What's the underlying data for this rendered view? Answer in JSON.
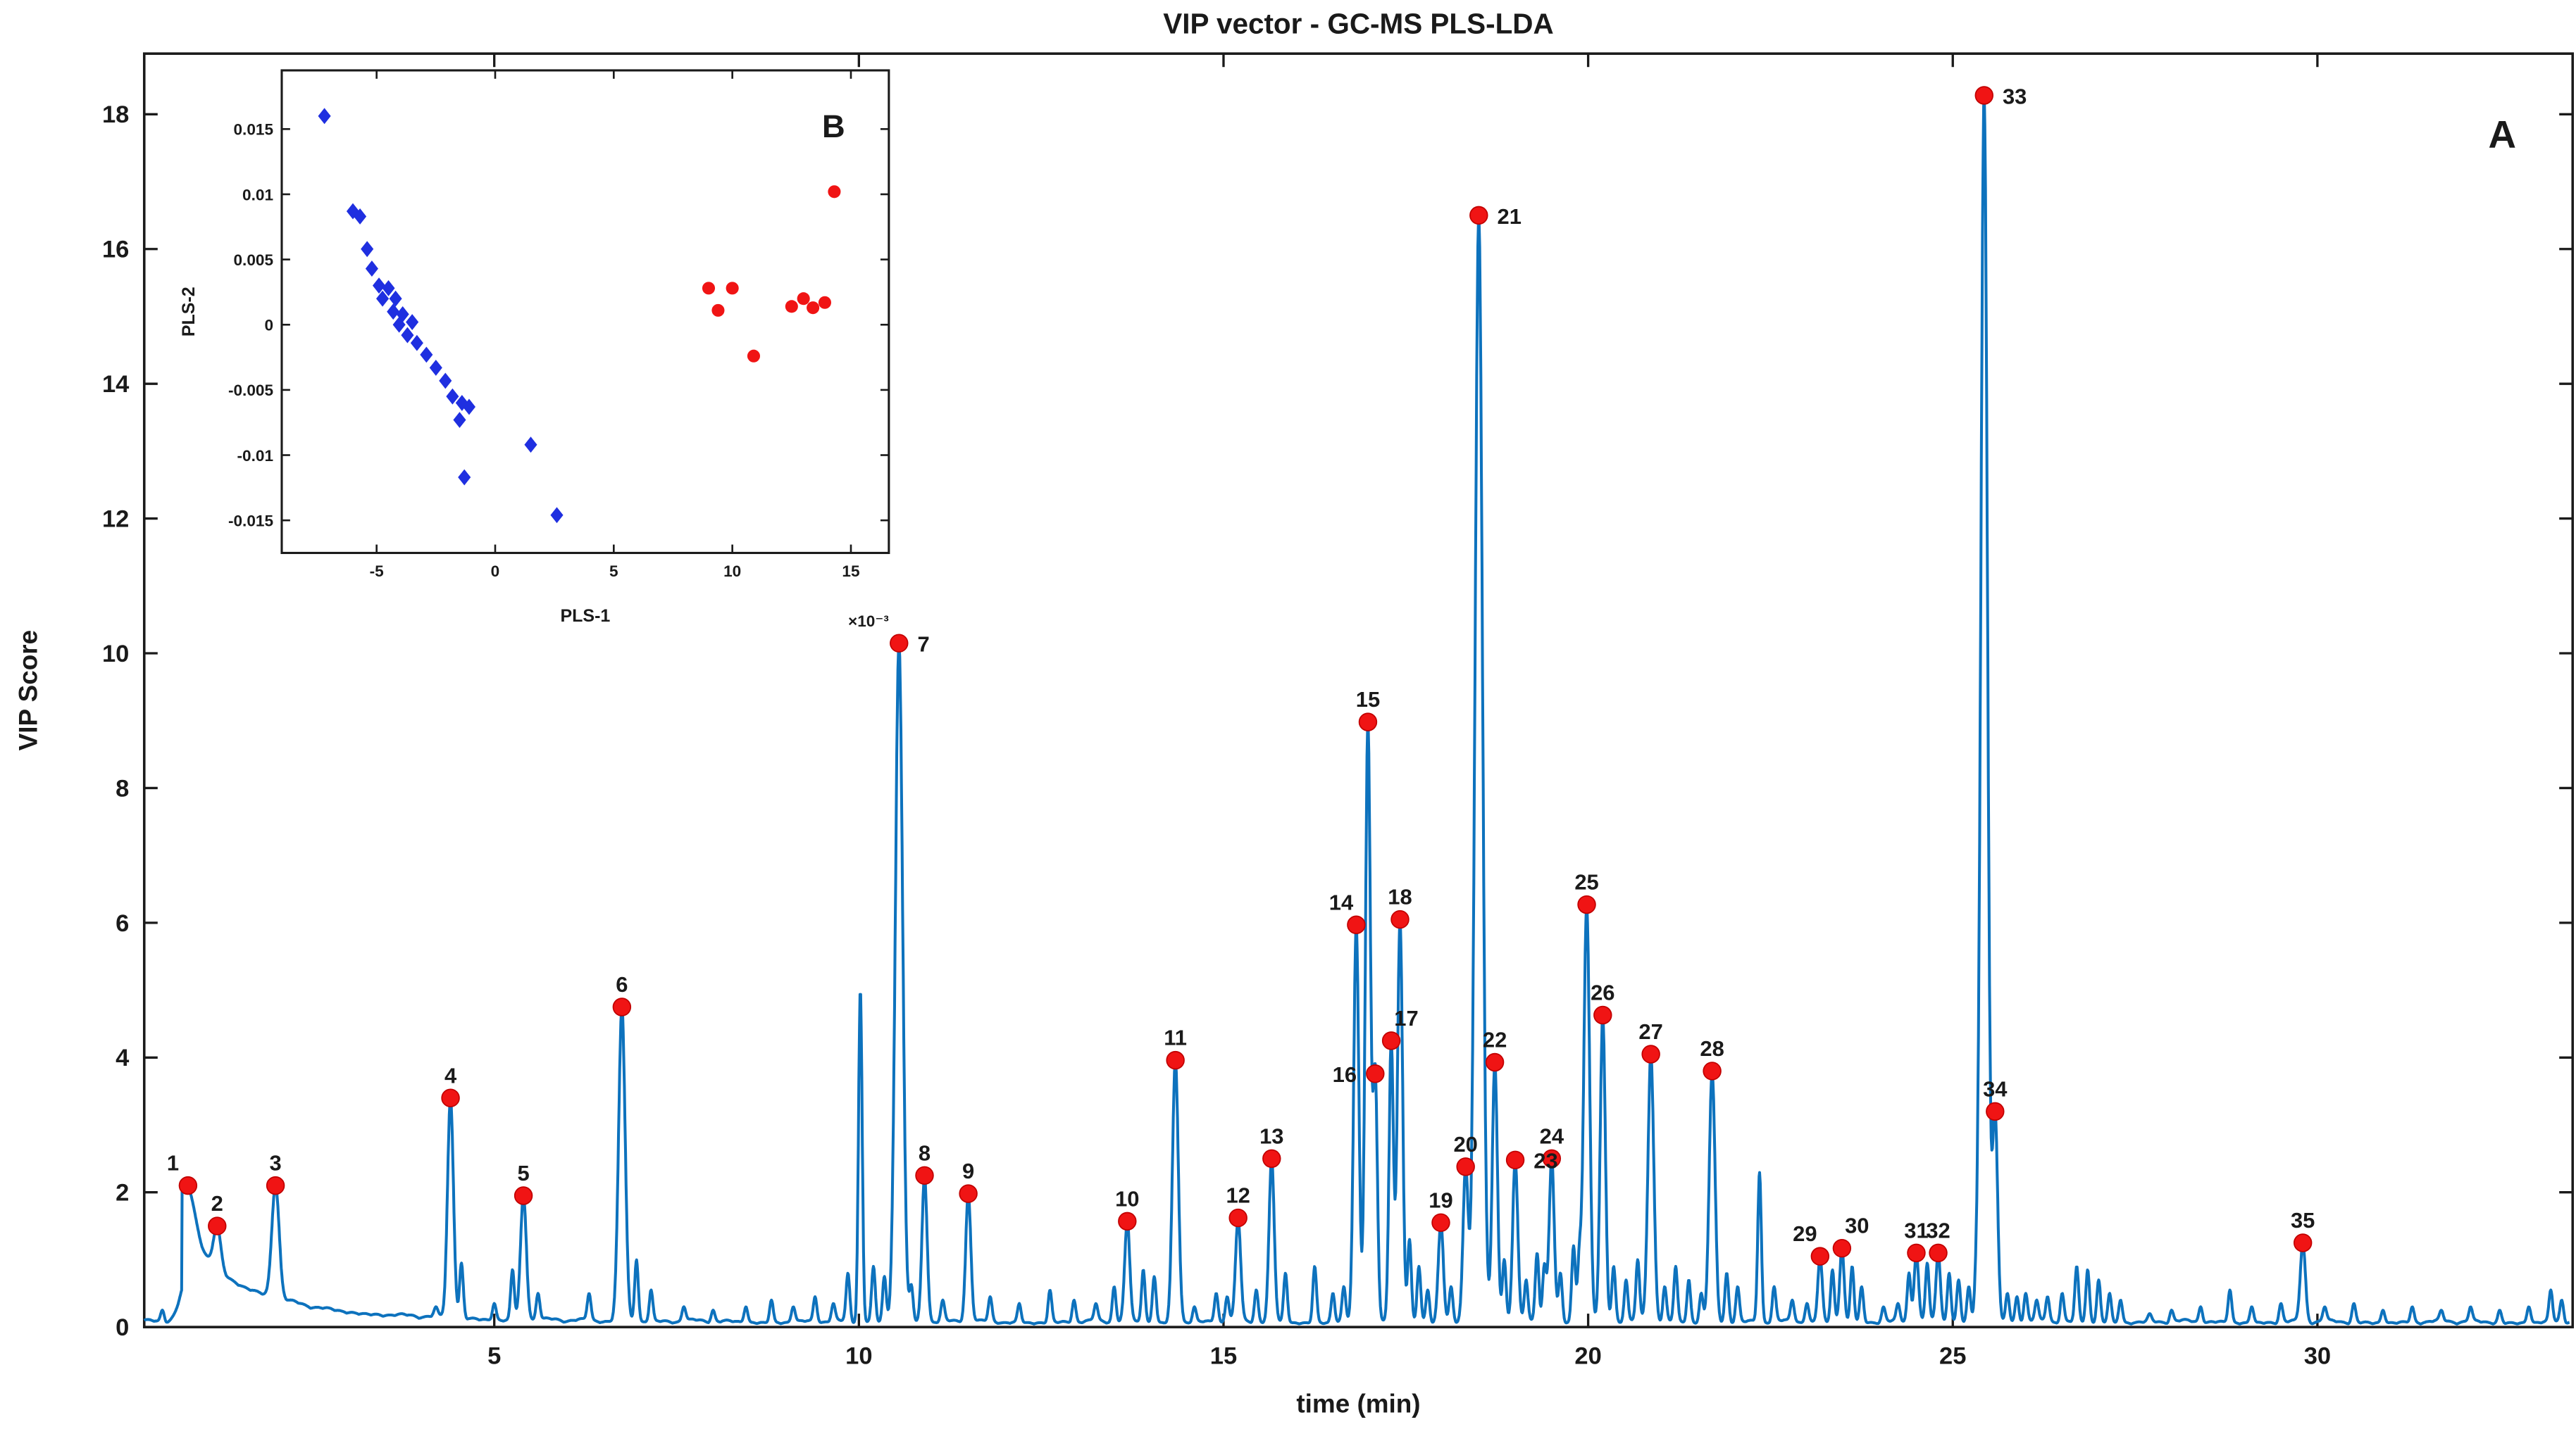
{
  "figure": {
    "panel_label_main": "A",
    "panel_label_inset": "B"
  },
  "chart_data": [
    {
      "id": "main",
      "type": "line",
      "title": "VIP vector - GC-MS PLS-LDA",
      "xlabel": "time (min)",
      "ylabel": "VIP Score",
      "xlim": [
        0.2,
        33.5
      ],
      "ylim": [
        0,
        18.9
      ],
      "xticks": [
        5,
        10,
        15,
        20,
        25,
        30
      ],
      "yticks": [
        0,
        2,
        4,
        6,
        8,
        10,
        12,
        14,
        16,
        18
      ],
      "grid": false,
      "line_color": "#0d72bd",
      "marker_color": "#f01414",
      "marker_edge_color": "#c00000",
      "axis_color": "#1a1a1a",
      "peaks": [
        {
          "n": 1,
          "t": 0.8,
          "v": 2.1,
          "s": 0.1,
          "la": "tl"
        },
        {
          "n": 2,
          "t": 1.2,
          "v": 1.5,
          "s": 0.05,
          "la": "t"
        },
        {
          "n": 3,
          "t": 2.0,
          "v": 2.1,
          "s": 0.05,
          "la": "t"
        },
        {
          "n": 4,
          "t": 4.4,
          "v": 3.4,
          "s": 0.04,
          "la": "t"
        },
        {
          "n": 5,
          "t": 5.4,
          "v": 1.95,
          "s": 0.04,
          "la": "t"
        },
        {
          "n": 6,
          "t": 6.75,
          "v": 4.75,
          "s": 0.045,
          "la": "t"
        },
        {
          "n": 7,
          "t": 10.55,
          "v": 10.15,
          "s": 0.05,
          "la": "r"
        },
        {
          "n": 8,
          "t": 10.9,
          "v": 2.25,
          "s": 0.035,
          "la": "t"
        },
        {
          "n": 9,
          "t": 11.5,
          "v": 1.98,
          "s": 0.035,
          "la": "t"
        },
        {
          "n": 10,
          "t": 13.68,
          "v": 1.57,
          "s": 0.035,
          "la": "t"
        },
        {
          "n": 11,
          "t": 14.34,
          "v": 3.96,
          "s": 0.04,
          "la": "t"
        },
        {
          "n": 12,
          "t": 15.2,
          "v": 1.62,
          "s": 0.035,
          "la": "t"
        },
        {
          "n": 13,
          "t": 15.66,
          "v": 2.5,
          "s": 0.035,
          "la": "t"
        },
        {
          "n": 14,
          "t": 16.82,
          "v": 5.97,
          "s": 0.035,
          "la": "tl"
        },
        {
          "n": 15,
          "t": 16.98,
          "v": 8.98,
          "s": 0.035,
          "la": "t"
        },
        {
          "n": 16,
          "t": 17.08,
          "v": 3.76,
          "s": 0.03,
          "la": "l"
        },
        {
          "n": 17,
          "t": 17.3,
          "v": 4.25,
          "s": 0.03,
          "la": "tr"
        },
        {
          "n": 18,
          "t": 17.42,
          "v": 6.05,
          "s": 0.035,
          "la": "t"
        },
        {
          "n": 19,
          "t": 17.98,
          "v": 1.55,
          "s": 0.035,
          "la": "t"
        },
        {
          "n": 20,
          "t": 18.32,
          "v": 2.38,
          "s": 0.035,
          "la": "t"
        },
        {
          "n": 21,
          "t": 18.5,
          "v": 16.5,
          "s": 0.05,
          "la": "r"
        },
        {
          "n": 22,
          "t": 18.72,
          "v": 3.93,
          "s": 0.035,
          "la": "t"
        },
        {
          "n": 23,
          "t": 19.0,
          "v": 2.48,
          "s": 0.035,
          "la": "r"
        },
        {
          "n": 24,
          "t": 19.5,
          "v": 2.5,
          "s": 0.035,
          "la": "t"
        },
        {
          "n": 25,
          "t": 19.98,
          "v": 6.27,
          "s": 0.04,
          "la": "t"
        },
        {
          "n": 26,
          "t": 20.2,
          "v": 4.63,
          "s": 0.035,
          "la": "t"
        },
        {
          "n": 27,
          "t": 20.86,
          "v": 4.05,
          "s": 0.04,
          "la": "t"
        },
        {
          "n": 28,
          "t": 21.7,
          "v": 3.8,
          "s": 0.04,
          "la": "t"
        },
        {
          "n": 29,
          "t": 23.18,
          "v": 1.05,
          "s": 0.03,
          "la": "tl"
        },
        {
          "n": 30,
          "t": 23.48,
          "v": 1.17,
          "s": 0.03,
          "la": "tr"
        },
        {
          "n": 31,
          "t": 24.5,
          "v": 1.1,
          "s": 0.03,
          "la": "t"
        },
        {
          "n": 32,
          "t": 24.8,
          "v": 1.1,
          "s": 0.03,
          "la": "t"
        },
        {
          "n": 33,
          "t": 25.43,
          "v": 18.28,
          "s": 0.045,
          "la": "r"
        },
        {
          "n": 34,
          "t": 25.58,
          "v": 3.2,
          "s": 0.035,
          "la": "t"
        },
        {
          "n": 35,
          "t": 29.8,
          "v": 1.25,
          "s": 0.035,
          "la": "t"
        }
      ],
      "minor_peaks": [
        [
          0.45,
          0.25
        ],
        [
          4.2,
          0.3
        ],
        [
          4.55,
          0.95
        ],
        [
          5.0,
          0.35
        ],
        [
          5.25,
          0.85
        ],
        [
          5.6,
          0.5
        ],
        [
          6.3,
          0.5
        ],
        [
          6.95,
          1.0
        ],
        [
          7.15,
          0.55
        ],
        [
          7.6,
          0.3
        ],
        [
          8.0,
          0.25
        ],
        [
          8.45,
          0.3
        ],
        [
          8.8,
          0.4
        ],
        [
          9.1,
          0.3
        ],
        [
          9.4,
          0.45
        ],
        [
          9.65,
          0.35
        ],
        [
          9.85,
          0.8
        ],
        [
          10.02,
          5.0
        ],
        [
          10.2,
          0.9
        ],
        [
          10.35,
          0.75
        ],
        [
          10.72,
          0.6
        ],
        [
          11.15,
          0.4
        ],
        [
          11.8,
          0.45
        ],
        [
          12.2,
          0.35
        ],
        [
          12.62,
          0.55
        ],
        [
          12.95,
          0.4
        ],
        [
          13.25,
          0.35
        ],
        [
          13.5,
          0.6
        ],
        [
          13.9,
          0.85
        ],
        [
          14.05,
          0.75
        ],
        [
          14.6,
          0.3
        ],
        [
          14.9,
          0.5
        ],
        [
          15.05,
          0.45
        ],
        [
          15.45,
          0.55
        ],
        [
          15.85,
          0.8
        ],
        [
          16.25,
          0.9
        ],
        [
          16.5,
          0.5
        ],
        [
          16.65,
          0.6
        ],
        [
          17.55,
          1.3
        ],
        [
          17.68,
          0.9
        ],
        [
          17.8,
          0.55
        ],
        [
          18.12,
          0.6
        ],
        [
          18.85,
          1.0
        ],
        [
          19.15,
          0.7
        ],
        [
          19.3,
          1.1
        ],
        [
          19.4,
          0.9
        ],
        [
          19.62,
          0.8
        ],
        [
          19.8,
          1.2
        ],
        [
          19.88,
          1.0
        ],
        [
          20.35,
          0.9
        ],
        [
          20.52,
          0.7
        ],
        [
          20.68,
          1.0
        ],
        [
          21.05,
          0.6
        ],
        [
          21.2,
          0.9
        ],
        [
          21.38,
          0.7
        ],
        [
          21.55,
          0.5
        ],
        [
          21.9,
          0.8
        ],
        [
          22.05,
          0.6
        ],
        [
          22.35,
          2.3
        ],
        [
          22.55,
          0.6
        ],
        [
          22.8,
          0.4
        ],
        [
          23.0,
          0.35
        ],
        [
          23.35,
          0.85
        ],
        [
          23.62,
          0.9
        ],
        [
          23.75,
          0.6
        ],
        [
          24.05,
          0.3
        ],
        [
          24.25,
          0.35
        ],
        [
          24.4,
          0.8
        ],
        [
          24.65,
          0.95
        ],
        [
          24.95,
          0.8
        ],
        [
          25.08,
          0.7
        ],
        [
          25.22,
          0.6
        ],
        [
          25.32,
          0.5
        ],
        [
          25.75,
          0.5
        ],
        [
          25.88,
          0.45
        ],
        [
          26.0,
          0.5
        ],
        [
          26.15,
          0.4
        ],
        [
          26.3,
          0.45
        ],
        [
          26.5,
          0.5
        ],
        [
          26.7,
          0.9
        ],
        [
          26.85,
          0.85
        ],
        [
          27.0,
          0.7
        ],
        [
          27.15,
          0.5
        ],
        [
          27.3,
          0.4
        ],
        [
          27.7,
          0.2
        ],
        [
          28.0,
          0.25
        ],
        [
          28.4,
          0.3
        ],
        [
          28.8,
          0.55
        ],
        [
          29.1,
          0.3
        ],
        [
          29.5,
          0.35
        ],
        [
          30.1,
          0.3
        ],
        [
          30.5,
          0.35
        ],
        [
          30.9,
          0.25
        ],
        [
          31.3,
          0.3
        ],
        [
          31.7,
          0.25
        ],
        [
          32.1,
          0.3
        ],
        [
          32.5,
          0.25
        ],
        [
          32.9,
          0.3
        ],
        [
          33.2,
          0.55
        ],
        [
          33.35,
          0.4
        ]
      ],
      "baseline_hump": {
        "t0": 0.72,
        "a1": 0.9,
        "tau1": 0.5,
        "a2": 0.62,
        "tau2": 1.6
      }
    },
    {
      "id": "inset",
      "type": "scatter",
      "xlabel": "PLS-1",
      "ylabel": "PLS-2",
      "x_multiplier": "×10⁻³",
      "xlim": [
        -9,
        16.6
      ],
      "ylim": [
        -0.0175,
        0.0195
      ],
      "xticks": [
        -5,
        0,
        5,
        10,
        15
      ],
      "yticks": [
        -0.015,
        -0.01,
        -0.005,
        0,
        0.005,
        0.01,
        0.015
      ],
      "grid": false,
      "series": [
        {
          "name": "class-blue",
          "marker": "diamond",
          "color": "#1f2fe0",
          "points": [
            [
              -7.2,
              0.016
            ],
            [
              -6.0,
              0.0087
            ],
            [
              -5.7,
              0.0083
            ],
            [
              -5.4,
              0.0058
            ],
            [
              -5.2,
              0.0043
            ],
            [
              -4.9,
              0.003
            ],
            [
              -4.75,
              0.002
            ],
            [
              -4.5,
              0.0028
            ],
            [
              -4.3,
              0.001
            ],
            [
              -4.2,
              0.002
            ],
            [
              -4.05,
              0.0
            ],
            [
              -3.9,
              0.0008
            ],
            [
              -3.7,
              -0.0008
            ],
            [
              -3.5,
              0.0002
            ],
            [
              -3.3,
              -0.0014
            ],
            [
              -2.9,
              -0.0023
            ],
            [
              -2.5,
              -0.0033
            ],
            [
              -2.1,
              -0.0043
            ],
            [
              -1.8,
              -0.0055
            ],
            [
              -1.5,
              -0.0073
            ],
            [
              -1.4,
              -0.006
            ],
            [
              -1.1,
              -0.0063
            ],
            [
              -1.3,
              -0.0117
            ],
            [
              1.5,
              -0.0092
            ],
            [
              2.6,
              -0.0146
            ]
          ]
        },
        {
          "name": "class-red",
          "marker": "circle",
          "color": "#f01414",
          "points": [
            [
              14.3,
              0.0102
            ],
            [
              9.0,
              0.0028
            ],
            [
              10.0,
              0.0028
            ],
            [
              9.4,
              0.0011
            ],
            [
              10.9,
              -0.0024
            ],
            [
              12.5,
              0.0014
            ],
            [
              13.0,
              0.002
            ],
            [
              13.4,
              0.0013
            ],
            [
              13.9,
              0.0017
            ]
          ]
        }
      ]
    }
  ]
}
